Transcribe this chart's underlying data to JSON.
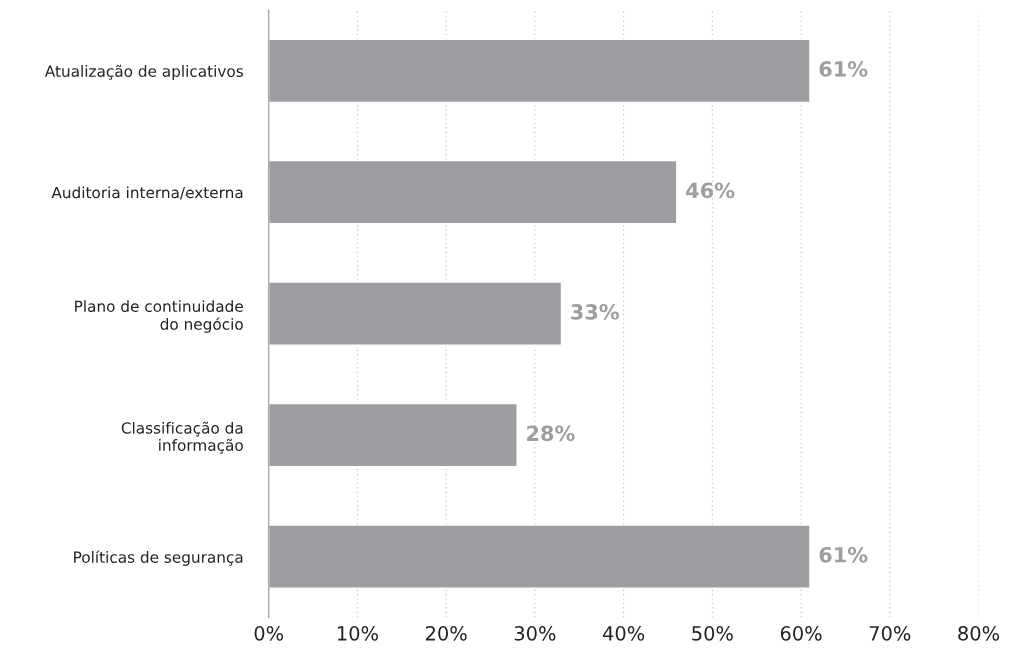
{
  "chart_data": {
    "type": "bar",
    "orientation": "horizontal",
    "categories": [
      "Atualização de aplicativos",
      "Auditoria interna/externa",
      "Plano de continuidade\ndo negócio",
      "Classificação da\ninformação",
      "Políticas de segurança"
    ],
    "values": [
      61,
      46,
      33,
      28,
      61
    ],
    "value_labels": [
      "61%",
      "46%",
      "33%",
      "28%",
      "61%"
    ],
    "color": "#9d9ea2",
    "xlim": [
      0,
      80
    ],
    "xticks": [
      {
        "value": 0,
        "label": "0%"
      },
      {
        "value": 10,
        "label": "10%"
      },
      {
        "value": 20,
        "label": "20%"
      },
      {
        "value": 30,
        "label": "30%"
      },
      {
        "value": 40,
        "label": "40%"
      },
      {
        "value": 50,
        "label": "50%"
      },
      {
        "value": 60,
        "label": "60%"
      },
      {
        "value": 70,
        "label": "70%"
      },
      {
        "value": 80,
        "label": "80%"
      }
    ],
    "grid": "x"
  }
}
